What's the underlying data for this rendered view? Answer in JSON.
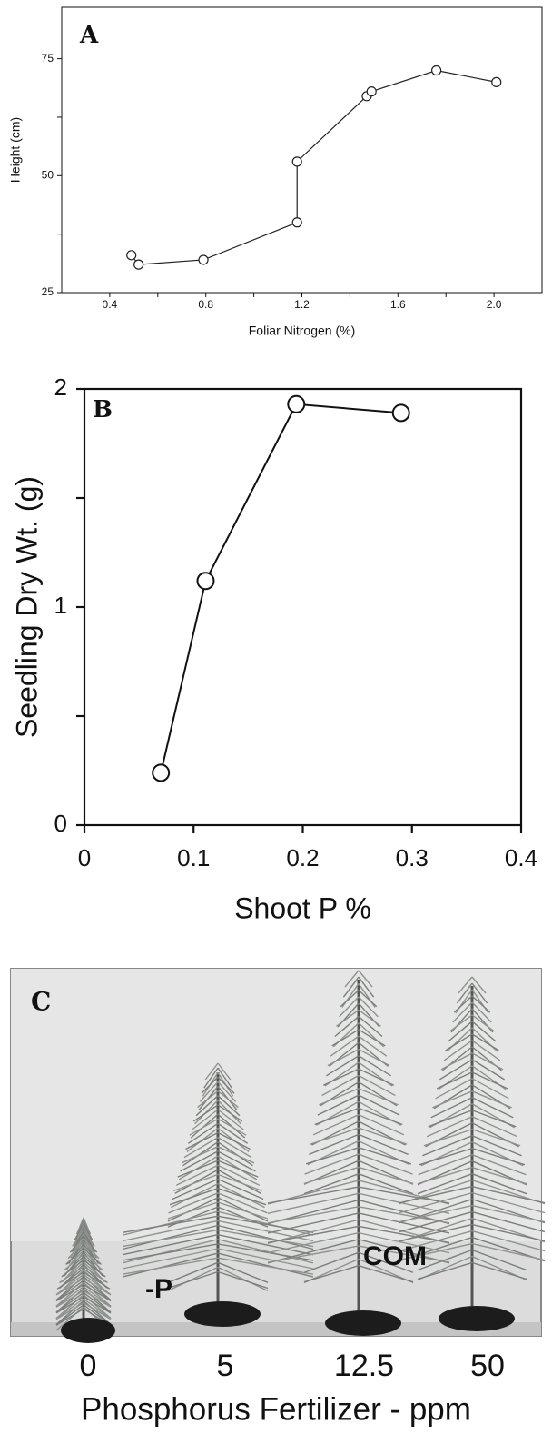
{
  "chart_data": [
    {
      "type": "line",
      "panel_label": "A",
      "xlabel": "Foliar Nitrogen (%)",
      "ylabel": "Height (cm)",
      "x": [
        0.49,
        0.52,
        0.79,
        1.18,
        1.18,
        1.47,
        1.49,
        1.76,
        2.01
      ],
      "values": [
        33,
        31,
        32,
        40,
        53,
        67,
        68,
        72.5,
        70
      ],
      "color": "#222222",
      "xlim": [
        0.2,
        2.2
      ],
      "ylim": [
        25,
        86
      ],
      "xticks": [
        0.4,
        0.8,
        1.2,
        1.6,
        {
          "value": 2,
          "label": "2.0"
        }
      ],
      "xminorticks": [
        0.6,
        1.0,
        1.4,
        1.8
      ],
      "yticks": [
        25,
        50,
        75
      ],
      "yminorticks": [
        37.5,
        62.5
      ]
    },
    {
      "type": "line",
      "panel_label": "B",
      "xlabel": "Shoot P %",
      "ylabel": "Seedling Dry Wt. (g)",
      "x": [
        0.07,
        0.111,
        0.194,
        0.29
      ],
      "values": [
        0.24,
        1.12,
        1.93,
        1.89
      ],
      "color": "#111111",
      "xlim": [
        0,
        0.4
      ],
      "ylim": [
        0,
        2
      ],
      "xticks": [
        0,
        0.1,
        0.2,
        0.3,
        0.4
      ],
      "yticks": [
        0,
        1,
        2
      ],
      "yminorticks": [
        0.5,
        1.5
      ]
    },
    {
      "type": "photo",
      "panel_label": "C",
      "categories": [
        "0",
        "5",
        "12.5",
        "50"
      ],
      "annotations": [
        "-P",
        "COM"
      ],
      "xlabel": "Phosphorus Fertilizer - ppm"
    }
  ]
}
